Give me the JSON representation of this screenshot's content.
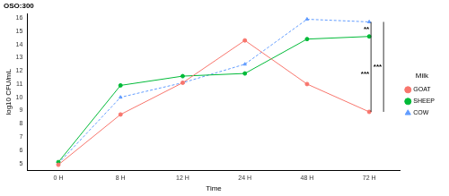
{
  "chart_data": {
    "type": "line",
    "title": "OSO:300",
    "x_label": "Time",
    "y_label": "log10 CFU/mL",
    "categories": [
      "0 H",
      "8 H",
      "12 H",
      "24 H",
      "48 H",
      "72 H"
    ],
    "series": [
      {
        "name": "GOAT",
        "color": "#F8766D",
        "marker": "circle",
        "line_style": "solid",
        "values": [
          4.9,
          8.7,
          11.1,
          14.3,
          11.0,
          8.9
        ]
      },
      {
        "name": "SHEEP",
        "color": "#00BA38",
        "marker": "circle",
        "line_style": "solid",
        "values": [
          5.1,
          10.9,
          11.6,
          11.8,
          14.4,
          14.6
        ]
      },
      {
        "name": "COW",
        "color": "#619CFF",
        "marker": "triangle",
        "line_style": "dashed",
        "values": [
          5.0,
          10.0,
          11.1,
          12.5,
          15.9,
          15.7
        ]
      }
    ],
    "legend_title": "Milk",
    "legend": "right",
    "ylim": [
      4.5,
      16.3
    ],
    "yticks": [
      5,
      6,
      7,
      8,
      9,
      10,
      11,
      12,
      13,
      14,
      15,
      16
    ],
    "grid": false,
    "annotations": [
      {
        "text": "**",
        "between": [
          "SHEEP",
          "COW"
        ]
      },
      {
        "text": "***",
        "between": [
          "GOAT",
          "SHEEP"
        ]
      },
      {
        "text": "***",
        "between": [
          "GOAT",
          "COW"
        ]
      }
    ]
  }
}
